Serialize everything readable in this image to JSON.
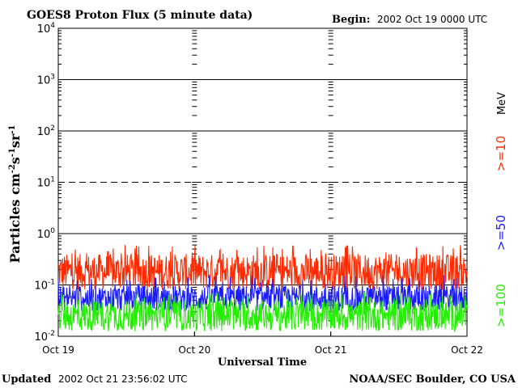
{
  "chart_data": {
    "type": "line",
    "title": "GOES8 Proton Flux (5 minute data)",
    "begin_label": "Begin:",
    "begin_value": "2002 Oct 19 0000 UTC",
    "ylabel_main": "Particles cm",
    "ylabel_sup1": "-2",
    "ylabel_mid1": "s",
    "ylabel_sup2": "-1",
    "ylabel_mid2": "sr",
    "ylabel_sup3": "-1",
    "xlabel": "Universal Time",
    "x_ticks": [
      "Oct 19",
      "Oct 20",
      "Oct 21",
      "Oct 22"
    ],
    "x_range_days": [
      0,
      3
    ],
    "y_scale": "log",
    "ylim": [
      0.01,
      10000
    ],
    "y_ticks": [
      {
        "base": "10",
        "exp": "-2"
      },
      {
        "base": "10",
        "exp": "-1"
      },
      {
        "base": "10",
        "exp": "0"
      },
      {
        "base": "10",
        "exp": "1"
      },
      {
        "base": "10",
        "exp": "2"
      },
      {
        "base": "10",
        "exp": "3"
      },
      {
        "base": "10",
        "exp": "4"
      }
    ],
    "reference_lines": [
      {
        "value": 10,
        "style": "dashed"
      }
    ],
    "grid": "solid horizontal lines at each decade",
    "series": [
      {
        "name": ">=10",
        "color": "#ff2a00",
        "base": 0.18,
        "spread": 0.35,
        "spikes_to": 0.5
      },
      {
        "name": ">=50",
        "color": "#1a1aff",
        "base": 0.055,
        "spread": 0.25,
        "spikes_to": 0.13
      },
      {
        "name": ">=100",
        "color": "#22ee00",
        "base": 0.025,
        "spread": 0.3,
        "spikes_to": 0.06
      }
    ],
    "legend_unit": "MeV",
    "legend_placement": "right, rotated vertical"
  },
  "footer": {
    "updated_label": "Updated",
    "updated_value": "2002 Oct 21 23:56:02 UTC",
    "credit": "NOAA/SEC Boulder, CO USA"
  }
}
